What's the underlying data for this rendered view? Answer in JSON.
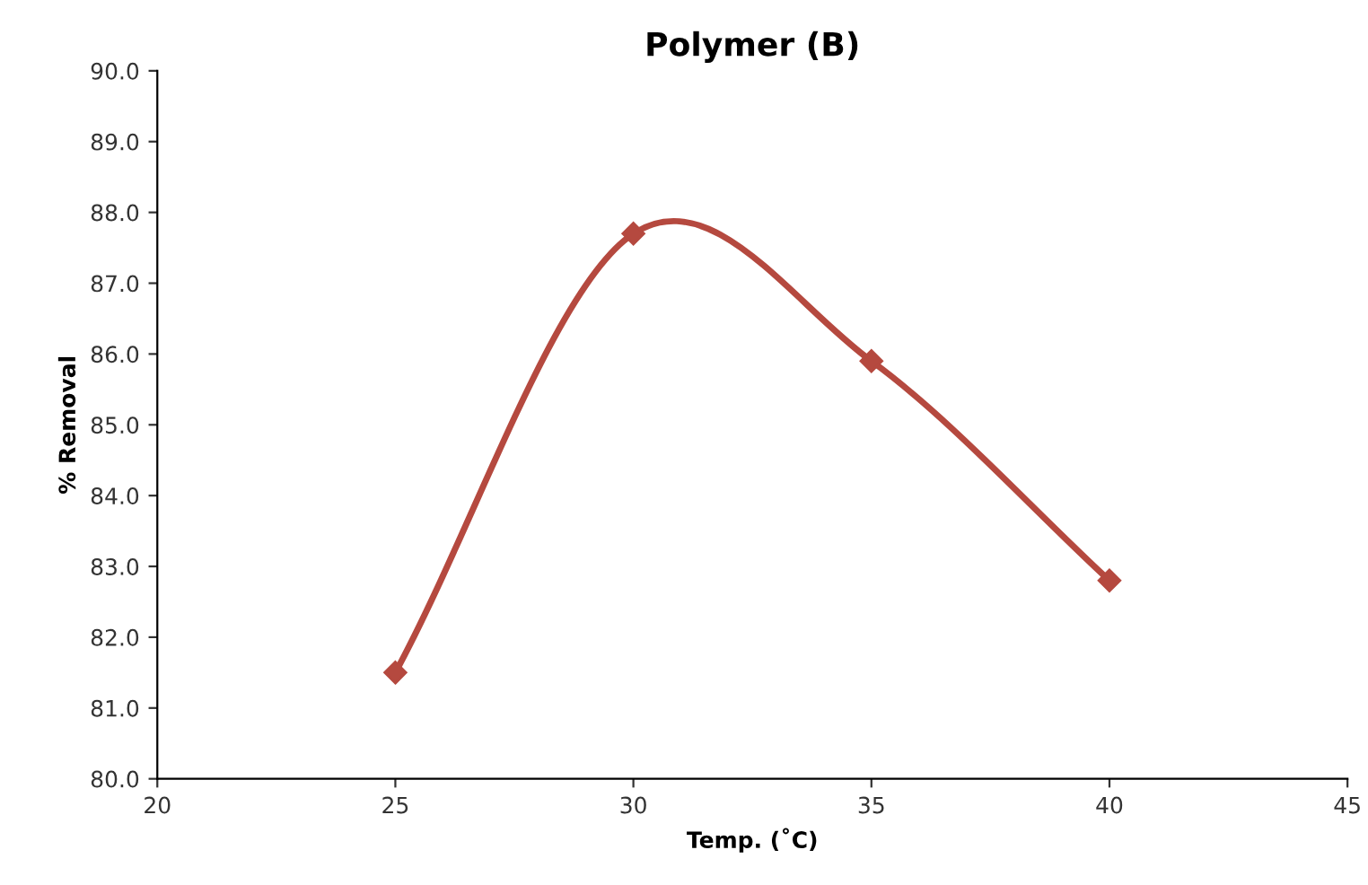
{
  "chart_data": {
    "type": "line",
    "title": "Polymer (B)",
    "xlabel": "Temp. (˚C)",
    "ylabel": "% Removal",
    "x": [
      25,
      30,
      35,
      40
    ],
    "series": [
      {
        "color": "#b5493f",
        "values": [
          81.5,
          87.7,
          85.9,
          82.8
        ]
      }
    ],
    "xlim": [
      20,
      45
    ],
    "xticks": [
      20,
      25,
      30,
      35,
      40,
      45
    ],
    "ylim": [
      80,
      90
    ],
    "yticks": [
      {
        "value": 80,
        "label": "80.0"
      },
      {
        "value": 81,
        "label": "81.0"
      },
      {
        "value": 82,
        "label": "82.0"
      },
      {
        "value": 83,
        "label": "83.0"
      },
      {
        "value": 84,
        "label": "84.0"
      },
      {
        "value": 85,
        "label": "85.0"
      },
      {
        "value": 86,
        "label": "86.0"
      },
      {
        "value": 87,
        "label": "87.0"
      },
      {
        "value": 88,
        "label": "88.0"
      },
      {
        "value": 89,
        "label": "89.0"
      },
      {
        "value": 90,
        "label": "90.0"
      }
    ],
    "marker": "diamond",
    "grid": false
  }
}
